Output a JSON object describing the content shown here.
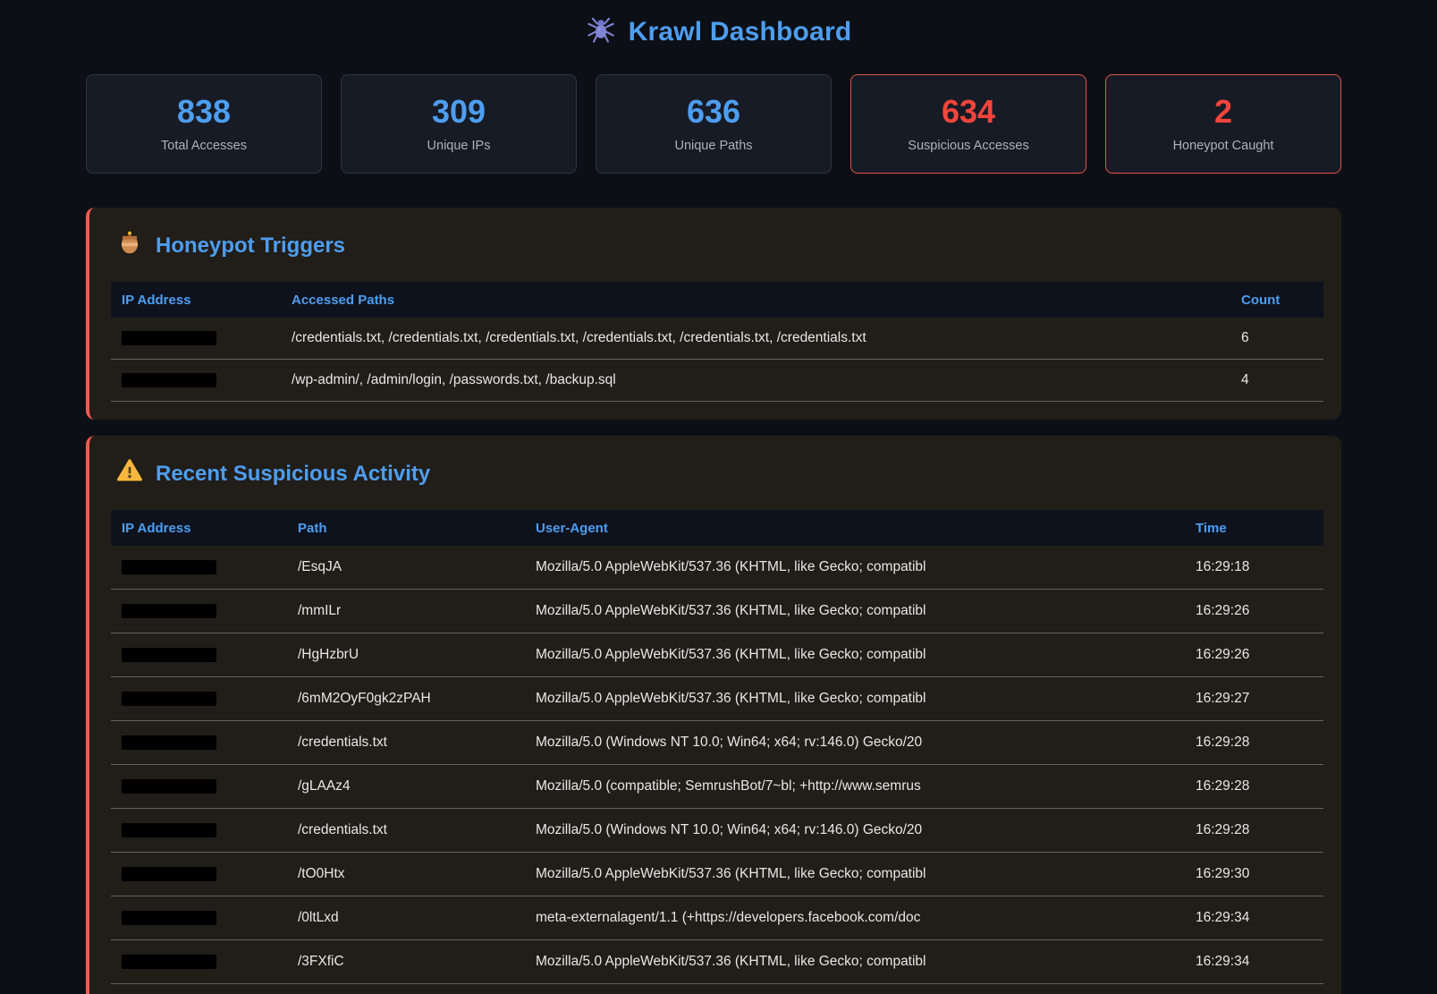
{
  "page": {
    "title": "Krawl Dashboard"
  },
  "colors": {
    "accent_blue": "#4d9ef0",
    "alert_red": "#f5453d",
    "panel_border_red": "#ef5b50",
    "page_bg": "#0c0f15",
    "card_bg": "#171b25",
    "panel_bg": "#211d19",
    "table_header_bg": "#0e121d"
  },
  "stats": [
    {
      "value": "838",
      "label": "Total Accesses",
      "alert": false
    },
    {
      "value": "309",
      "label": "Unique IPs",
      "alert": false
    },
    {
      "value": "636",
      "label": "Unique Paths",
      "alert": false
    },
    {
      "value": "634",
      "label": "Suspicious Accesses",
      "alert": true
    },
    {
      "value": "2",
      "label": "Honeypot Caught",
      "alert": true
    }
  ],
  "honeypot": {
    "title": "Honeypot Triggers",
    "icon": "honeypot-icon",
    "columns": [
      "IP Address",
      "Accessed Paths",
      "Count"
    ],
    "rows": [
      {
        "ip_redacted": true,
        "paths": "/credentials.txt, /credentials.txt, /credentials.txt, /credentials.txt, /credentials.txt, /credentials.txt",
        "count": "6"
      },
      {
        "ip_redacted": true,
        "paths": "/wp-admin/, /admin/login, /passwords.txt, /backup.sql",
        "count": "4"
      }
    ]
  },
  "activity": {
    "title": "Recent Suspicious Activity",
    "icon": "warning-icon",
    "columns": [
      "IP Address",
      "Path",
      "User-Agent",
      "Time"
    ],
    "rows": [
      {
        "ip_redacted": true,
        "path": "/EsqJA",
        "user_agent": "Mozilla/5.0 AppleWebKit/537.36 (KHTML, like Gecko; compatibl",
        "time": "16:29:18"
      },
      {
        "ip_redacted": true,
        "path": "/mmILr",
        "user_agent": "Mozilla/5.0 AppleWebKit/537.36 (KHTML, like Gecko; compatibl",
        "time": "16:29:26"
      },
      {
        "ip_redacted": true,
        "path": "/HgHzbrU",
        "user_agent": "Mozilla/5.0 AppleWebKit/537.36 (KHTML, like Gecko; compatibl",
        "time": "16:29:26"
      },
      {
        "ip_redacted": true,
        "path": "/6mM2OyF0gk2zPAH",
        "user_agent": "Mozilla/5.0 AppleWebKit/537.36 (KHTML, like Gecko; compatibl",
        "time": "16:29:27"
      },
      {
        "ip_redacted": true,
        "path": "/credentials.txt",
        "user_agent": "Mozilla/5.0 (Windows NT 10.0; Win64; x64; rv:146.0) Gecko/20",
        "time": "16:29:28"
      },
      {
        "ip_redacted": true,
        "path": "/gLAAz4",
        "user_agent": "Mozilla/5.0 (compatible; SemrushBot/7~bl; +http://www.semrus",
        "time": "16:29:28"
      },
      {
        "ip_redacted": true,
        "path": "/credentials.txt",
        "user_agent": "Mozilla/5.0 (Windows NT 10.0; Win64; x64; rv:146.0) Gecko/20",
        "time": "16:29:28"
      },
      {
        "ip_redacted": true,
        "path": "/tO0Htx",
        "user_agent": "Mozilla/5.0 AppleWebKit/537.36 (KHTML, like Gecko; compatibl",
        "time": "16:29:30"
      },
      {
        "ip_redacted": true,
        "path": "/0ltLxd",
        "user_agent": "meta-externalagent/1.1 (+https://developers.facebook.com/doc",
        "time": "16:29:34"
      },
      {
        "ip_redacted": true,
        "path": "/3FXfiC",
        "user_agent": "Mozilla/5.0 AppleWebKit/537.36 (KHTML, like Gecko; compatibl",
        "time": "16:29:34"
      }
    ]
  }
}
